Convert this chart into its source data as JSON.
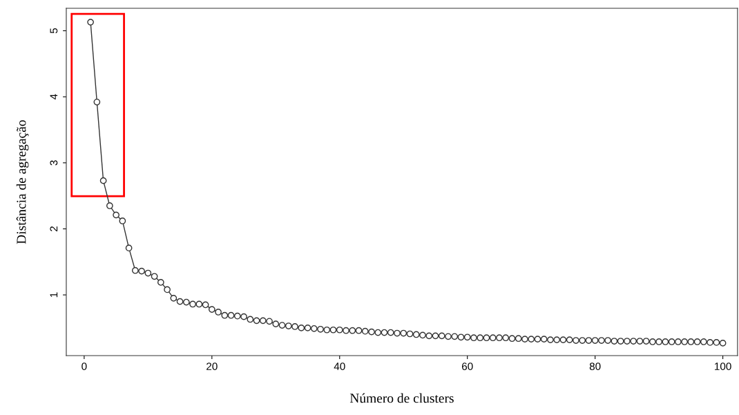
{
  "chart_data": {
    "type": "line",
    "xlabel": "Número de clusters",
    "ylabel": "Distância de agregação",
    "x": [
      1,
      2,
      3,
      4,
      5,
      6,
      7,
      8,
      9,
      10,
      11,
      12,
      13,
      14,
      15,
      16,
      17,
      18,
      19,
      20,
      21,
      22,
      23,
      24,
      25,
      26,
      27,
      28,
      29,
      30,
      31,
      32,
      33,
      34,
      35,
      36,
      37,
      38,
      39,
      40,
      41,
      42,
      43,
      44,
      45,
      46,
      47,
      48,
      49,
      50,
      51,
      52,
      53,
      54,
      55,
      56,
      57,
      58,
      59,
      60,
      61,
      62,
      63,
      64,
      65,
      66,
      67,
      68,
      69,
      70,
      71,
      72,
      73,
      74,
      75,
      76,
      77,
      78,
      79,
      80,
      81,
      82,
      83,
      84,
      85,
      86,
      87,
      88,
      89,
      90,
      91,
      92,
      93,
      94,
      95,
      96,
      97,
      98,
      99,
      100
    ],
    "series": [
      {
        "color": "#333333",
        "values": [
          5.13,
          3.92,
          2.73,
          2.35,
          2.21,
          2.12,
          1.71,
          1.37,
          1.36,
          1.33,
          1.28,
          1.19,
          1.08,
          0.95,
          0.9,
          0.89,
          0.86,
          0.86,
          0.85,
          0.78,
          0.74,
          0.69,
          0.69,
          0.68,
          0.67,
          0.63,
          0.61,
          0.61,
          0.6,
          0.56,
          0.54,
          0.53,
          0.52,
          0.5,
          0.5,
          0.49,
          0.48,
          0.47,
          0.47,
          0.47,
          0.46,
          0.46,
          0.46,
          0.45,
          0.44,
          0.43,
          0.43,
          0.43,
          0.42,
          0.42,
          0.41,
          0.4,
          0.39,
          0.38,
          0.38,
          0.38,
          0.37,
          0.37,
          0.36,
          0.36,
          0.35,
          0.35,
          0.35,
          0.35,
          0.35,
          0.35,
          0.34,
          0.34,
          0.33,
          0.33,
          0.33,
          0.33,
          0.32,
          0.32,
          0.32,
          0.32,
          0.31,
          0.31,
          0.31,
          0.31,
          0.31,
          0.31,
          0.3,
          0.3,
          0.3,
          0.3,
          0.3,
          0.3,
          0.29,
          0.29,
          0.29,
          0.29,
          0.29,
          0.29,
          0.29,
          0.29,
          0.29,
          0.28,
          0.28,
          0.27
        ]
      }
    ],
    "xlim": [
      -2.8,
      102.3
    ],
    "ylim": [
      0.08,
      5.34
    ],
    "xticks": [
      0,
      20,
      40,
      60,
      80,
      100
    ],
    "yticks": [
      1,
      2,
      3,
      4,
      5
    ],
    "marker": "circle",
    "line_style": "solid",
    "grid": false
  }
}
